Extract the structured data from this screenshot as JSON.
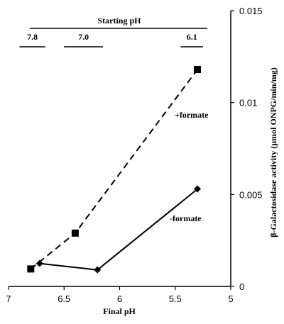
{
  "chart_data": {
    "type": "line",
    "title": "",
    "xlabel": "Final pH",
    "ylabel": "β-Galactosidase activity (µmol ONPG/min/mg)",
    "xlim": [
      7,
      5
    ],
    "xaxis_reversed": true,
    "ylim": [
      0,
      0.015
    ],
    "x_ticks": [
      "7",
      "6.5",
      "6",
      "5.5",
      "5"
    ],
    "y_ticks": [
      "0",
      "0.005",
      "0.01",
      "0.015"
    ],
    "grid": false,
    "legend": "none",
    "series": [
      {
        "name": "+formate",
        "style": "dashed",
        "marker": "square",
        "color": "#000000",
        "points": [
          {
            "x": 6.8,
            "y": 0.00095
          },
          {
            "x": 6.4,
            "y": 0.0029
          },
          {
            "x": 5.3,
            "y": 0.0118
          }
        ]
      },
      {
        "name": "-formate",
        "style": "solid",
        "marker": "diamond",
        "color": "#000000",
        "points": [
          {
            "x": 6.72,
            "y": 0.00125
          },
          {
            "x": 6.2,
            "y": 0.0009
          },
          {
            "x": 5.3,
            "y": 0.0053
          }
        ]
      }
    ],
    "top_axis": {
      "title": "Starting pH",
      "groups": [
        {
          "label": "7.8",
          "x_start": 6.85,
          "x_end": 6.72
        },
        {
          "label": "7.0",
          "x_start": 6.45,
          "x_end": 6.2
        },
        {
          "label": "6.1",
          "x_start": 5.4,
          "x_end": 5.3
        }
      ]
    }
  }
}
